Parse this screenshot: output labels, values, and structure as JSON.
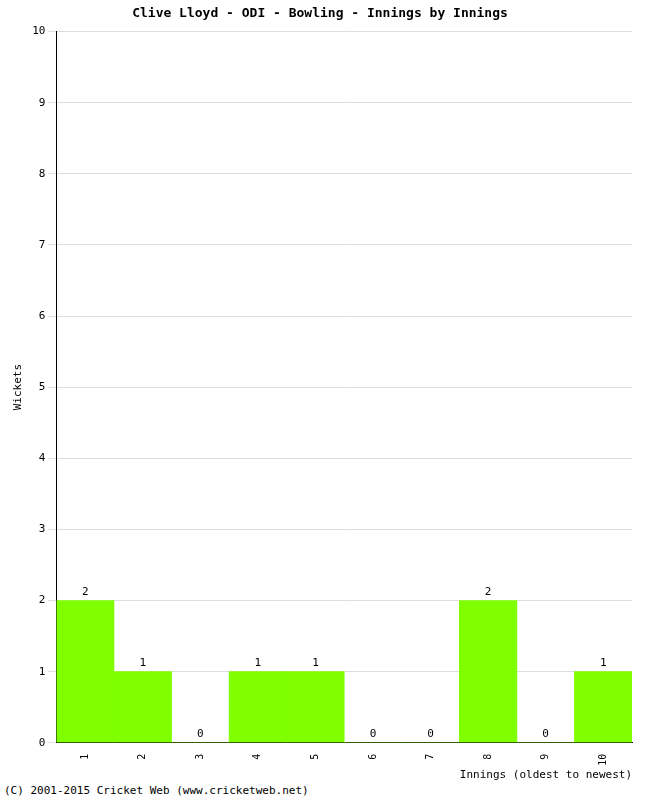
{
  "chart_data": {
    "type": "bar",
    "title": "Clive Lloyd - ODI - Bowling - Innings by Innings",
    "x_label": "Innings (oldest to newest)",
    "y_label": "Wickets",
    "categories": [
      "1",
      "2",
      "3",
      "4",
      "5",
      "6",
      "7",
      "8",
      "9",
      "10"
    ],
    "values": [
      2,
      1,
      0,
      1,
      1,
      0,
      0,
      2,
      0,
      1
    ],
    "color": "#7fff00",
    "ylim": [
      0,
      10
    ],
    "yticks": [
      0,
      1,
      2,
      3,
      4,
      5,
      6,
      7,
      8,
      9,
      10
    ],
    "grid": true,
    "data_labels": true,
    "annotations": [
      "(C) 2001-2015 Cricket Web (www.cricketweb.net)"
    ]
  }
}
